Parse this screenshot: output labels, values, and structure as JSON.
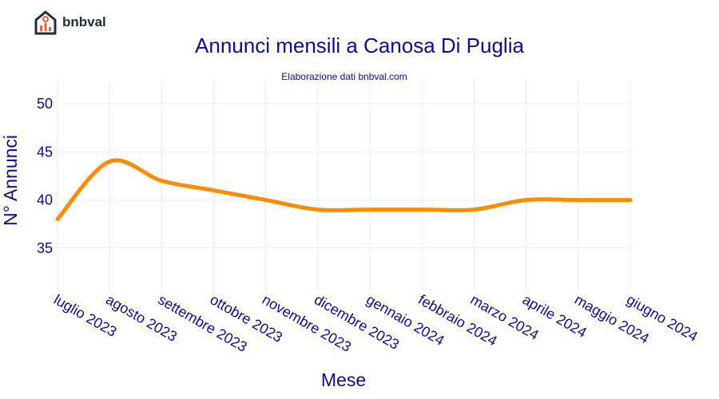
{
  "brand": {
    "name": "bnbval",
    "logo_icon": "house-chart-icon"
  },
  "colors": {
    "line": "#ff8c00",
    "text": "#0d0d8c",
    "grid": "#ececec",
    "logo": "#1f2d3d",
    "logo_accent": "#e8603c"
  },
  "chart_data": {
    "type": "line",
    "title": "Annunci mensili a Canosa Di Puglia",
    "subtitle": "Elaborazione dati bnbval.com",
    "xlabel": "Mese",
    "ylabel": "N° Annunci",
    "categories": [
      "luglio 2023",
      "agosto 2023",
      "settembre 2023",
      "ottobre 2023",
      "novembre 2023",
      "dicembre 2023",
      "gennaio 2024",
      "febbraio 2024",
      "marzo 2024",
      "aprile 2024",
      "maggio 2024",
      "giugno 2024"
    ],
    "series": [
      {
        "values": [
          38,
          44,
          42,
          41,
          40,
          39,
          39,
          39,
          39,
          40,
          40,
          40
        ]
      }
    ],
    "yticks": [
      35,
      40,
      45,
      50
    ],
    "ylim": [
      30.5,
      52.5
    ],
    "grid": true,
    "legend": "none"
  }
}
